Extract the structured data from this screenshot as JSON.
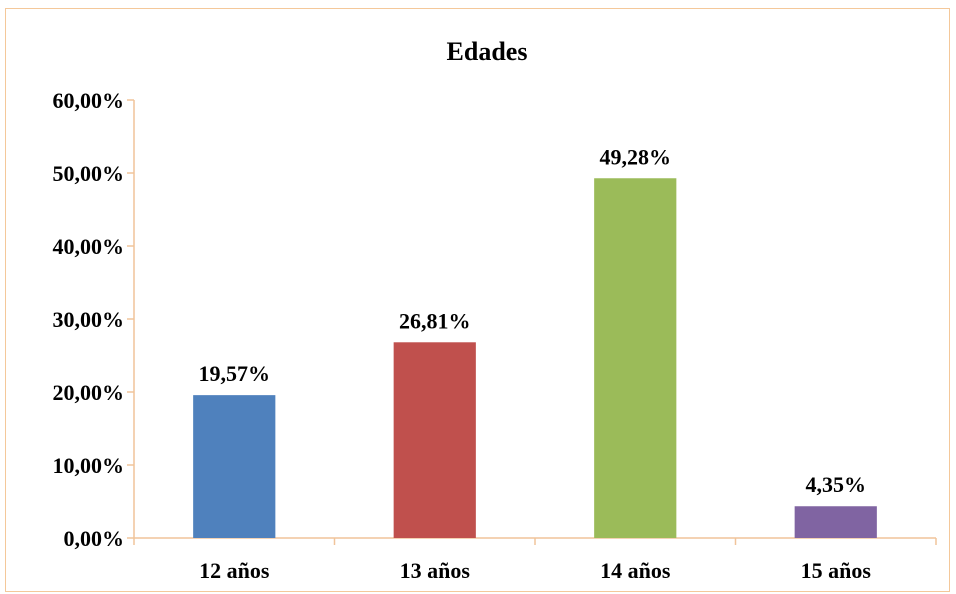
{
  "chart_data": {
    "type": "bar",
    "title": "Edades",
    "xlabel": "",
    "ylabel": "",
    "categories": [
      "12 años",
      "13 años",
      "14 años",
      "15 años"
    ],
    "values": [
      19.57,
      26.81,
      49.28,
      4.35
    ],
    "data_labels": [
      "19,57%",
      "26,81%",
      "49,28%",
      "4,35%"
    ],
    "colors": [
      "#4f81bd",
      "#c0504d",
      "#9bbb59",
      "#8064a2"
    ],
    "ylim": [
      0,
      60
    ],
    "y_ticks": [
      0,
      10,
      20,
      30,
      40,
      50,
      60
    ],
    "y_tick_labels": [
      "0,00%",
      "10,00%",
      "20,00%",
      "30,00%",
      "40,00%",
      "50,00%",
      "60,00%"
    ],
    "grid": false,
    "legend": "none"
  }
}
